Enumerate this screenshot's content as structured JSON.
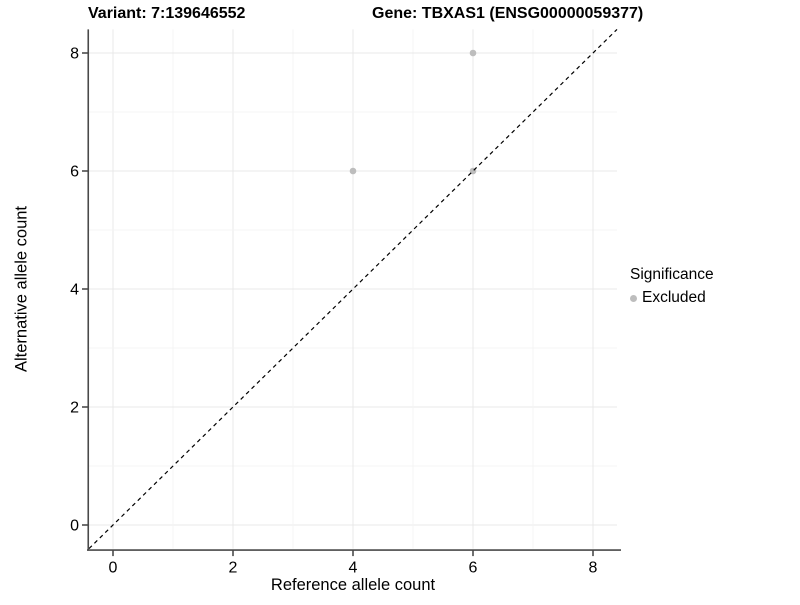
{
  "titles": {
    "variant": "Variant: 7:139646552",
    "gene": "Gene: TBXAS1 (ENSG00000059377)"
  },
  "chart_data": {
    "type": "scatter",
    "title_left": "Variant: 7:139646552",
    "title_right": "Gene: TBXAS1 (ENSG00000059377)",
    "xlabel": "Reference allele count",
    "ylabel": "Alternative allele count",
    "xlim": [
      -0.4,
      8.4
    ],
    "ylim": [
      -0.4,
      8.4
    ],
    "x_ticks": [
      0,
      2,
      4,
      6,
      8
    ],
    "y_ticks": [
      0,
      2,
      4,
      6,
      8
    ],
    "grid": "on",
    "grid_every": 1,
    "legend_position": "right",
    "series": [
      {
        "name": "Excluded",
        "color": "#bdbdbd",
        "points": [
          [
            4,
            6
          ],
          [
            6,
            6
          ],
          [
            6,
            8
          ]
        ]
      }
    ],
    "reference_line": {
      "type": "identity",
      "slope": 1,
      "intercept": 0,
      "style": "dashed",
      "color": "#000000"
    },
    "legend": {
      "title": "Significance",
      "items": [
        {
          "label": "Excluded",
          "color": "#bdbdbd"
        }
      ]
    }
  },
  "colors": {
    "point": "#bdbdbd",
    "axis_line": "#4a4a4a",
    "tick": "#333333",
    "grid_major": "#e8e8e8",
    "grid_minor": "#f4f4f4",
    "text": "#000000",
    "background": "#ffffff"
  }
}
